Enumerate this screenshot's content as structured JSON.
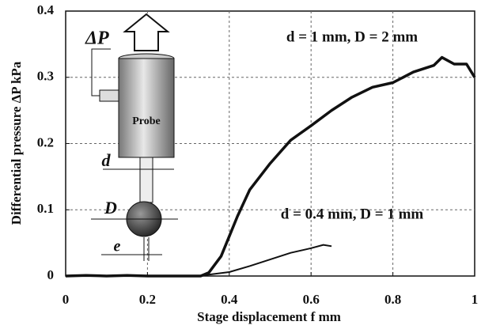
{
  "chart_data": {
    "type": "line",
    "xlabel": "Stage displacement f   mm",
    "ylabel": "Differential pressure ΔP kPa",
    "xlim": [
      0,
      1
    ],
    "xticks": [
      0,
      0.2,
      0.4,
      0.6,
      0.8,
      1
    ],
    "ylim": [
      0,
      0.4
    ],
    "yticks": [
      0,
      0.1,
      0.2,
      0.3,
      0.4
    ],
    "grid": true,
    "inset_labels": [
      "ΔP",
      "Probe",
      "d",
      "D",
      "e"
    ],
    "series": [
      {
        "name": "d = 1 mm, D = 2 mm",
        "color": "#111111",
        "width": 3.5,
        "x": [
          0,
          0.05,
          0.1,
          0.15,
          0.2,
          0.25,
          0.3,
          0.33,
          0.35,
          0.38,
          0.4,
          0.42,
          0.45,
          0.5,
          0.55,
          0.6,
          0.65,
          0.7,
          0.75,
          0.8,
          0.85,
          0.9,
          0.92,
          0.95,
          0.98,
          1
        ],
        "values": [
          0,
          0.001,
          0,
          0.001,
          0,
          0,
          0,
          0,
          0.005,
          0.03,
          0.06,
          0.09,
          0.13,
          0.17,
          0.205,
          0.227,
          0.25,
          0.27,
          0.285,
          0.292,
          0.308,
          0.318,
          0.33,
          0.32,
          0.32,
          0.3
        ]
      },
      {
        "name": "d = 0.4 mm, D = 1 mm",
        "color": "#111111",
        "width": 2,
        "x": [
          0.33,
          0.35,
          0.4,
          0.45,
          0.5,
          0.55,
          0.6,
          0.63,
          0.65
        ],
        "values": [
          0,
          0.002,
          0.006,
          0.015,
          0.025,
          0.035,
          0.042,
          0.047,
          0.045
        ]
      }
    ]
  }
}
